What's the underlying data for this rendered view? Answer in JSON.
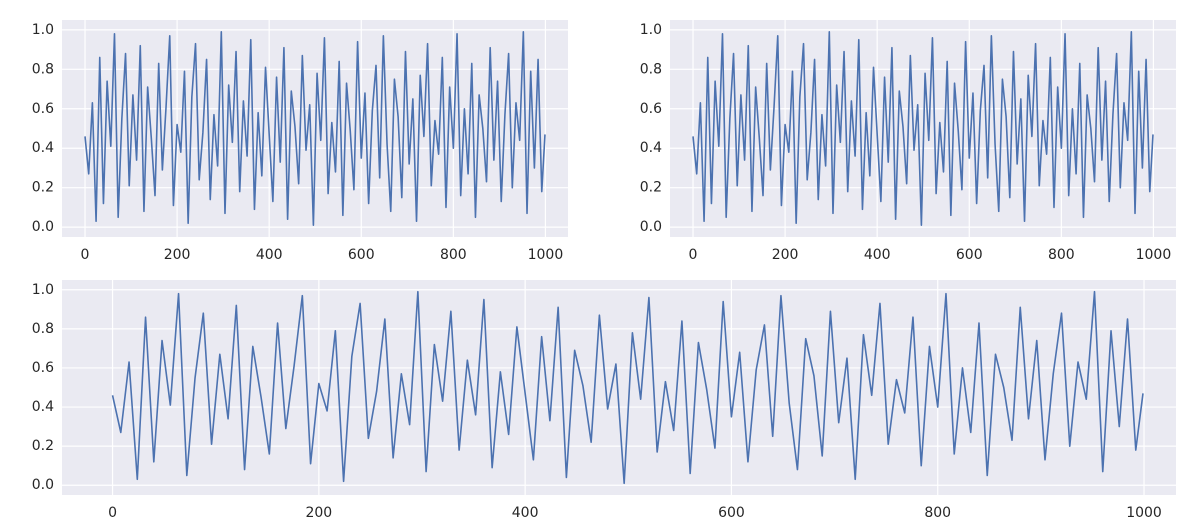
{
  "chart_data": [
    {
      "type": "line",
      "color": "#4c72b0",
      "grid": true,
      "x": [
        0,
        8,
        16,
        24,
        32,
        40,
        48,
        56,
        64,
        72,
        80,
        88,
        96,
        104,
        112,
        120,
        128,
        136,
        144,
        152,
        160,
        168,
        176,
        184,
        192,
        200,
        208,
        216,
        224,
        232,
        240,
        248,
        256,
        264,
        272,
        280,
        288,
        296,
        304,
        312,
        320,
        328,
        336,
        344,
        352,
        360,
        368,
        376,
        384,
        392,
        400,
        408,
        416,
        424,
        432,
        440,
        448,
        456,
        464,
        472,
        480,
        488,
        496,
        504,
        512,
        520,
        528,
        536,
        544,
        552,
        560,
        568,
        576,
        584,
        592,
        600,
        608,
        616,
        624,
        632,
        640,
        648,
        656,
        664,
        672,
        680,
        688,
        696,
        704,
        712,
        720,
        728,
        736,
        744,
        752,
        760,
        768,
        776,
        784,
        792,
        800,
        808,
        816,
        824,
        832,
        840,
        848,
        856,
        864,
        872,
        880,
        888,
        896,
        904,
        912,
        920,
        928,
        936,
        944,
        952,
        960,
        968,
        976,
        984,
        992,
        999
      ],
      "values": [
        0.46,
        0.27,
        0.63,
        0.03,
        0.86,
        0.12,
        0.74,
        0.41,
        0.98,
        0.05,
        0.55,
        0.88,
        0.21,
        0.67,
        0.34,
        0.92,
        0.08,
        0.71,
        0.45,
        0.16,
        0.83,
        0.29,
        0.61,
        0.97,
        0.11,
        0.52,
        0.38,
        0.79,
        0.02,
        0.66,
        0.93,
        0.24,
        0.48,
        0.85,
        0.14,
        0.57,
        0.31,
        0.99,
        0.07,
        0.72,
        0.43,
        0.89,
        0.18,
        0.64,
        0.36,
        0.95,
        0.09,
        0.58,
        0.26,
        0.81,
        0.47,
        0.13,
        0.76,
        0.33,
        0.91,
        0.04,
        0.69,
        0.51,
        0.22,
        0.87,
        0.39,
        0.62,
        0.01,
        0.78,
        0.44,
        0.96,
        0.17,
        0.53,
        0.28,
        0.84,
        0.06,
        0.73,
        0.49,
        0.19,
        0.94,
        0.35,
        0.68,
        0.12,
        0.59,
        0.82,
        0.25,
        0.97,
        0.42,
        0.08,
        0.75,
        0.56,
        0.15,
        0.89,
        0.32,
        0.65,
        0.03,
        0.77,
        0.46,
        0.93,
        0.21,
        0.54,
        0.37,
        0.86,
        0.1,
        0.71,
        0.4,
        0.98,
        0.16,
        0.6,
        0.27,
        0.83,
        0.05,
        0.67,
        0.5,
        0.23,
        0.91,
        0.34,
        0.74,
        0.13,
        0.57,
        0.88,
        0.2,
        0.63,
        0.44,
        0.99,
        0.07,
        0.79,
        0.3,
        0.85,
        0.18,
        0.47
      ],
      "xlim": [
        -50,
        1049
      ],
      "ylim": [
        -0.05,
        1.05
      ],
      "xticks": [
        0,
        200,
        400,
        600,
        800,
        1000
      ],
      "yticks": [
        {
          "value": 0,
          "label": "0.0"
        },
        {
          "value": 0.2,
          "label": "0.2"
        },
        {
          "value": 0.4,
          "label": "0.4"
        },
        {
          "value": 0.6,
          "label": "0.6"
        },
        {
          "value": 0.8,
          "label": "0.8"
        },
        {
          "value": 1,
          "label": "1.0"
        }
      ]
    },
    {
      "type": "line",
      "color": "#4c72b0",
      "grid": true,
      "x": [
        0,
        8,
        16,
        24,
        32,
        40,
        48,
        56,
        64,
        72,
        80,
        88,
        96,
        104,
        112,
        120,
        128,
        136,
        144,
        152,
        160,
        168,
        176,
        184,
        192,
        200,
        208,
        216,
        224,
        232,
        240,
        248,
        256,
        264,
        272,
        280,
        288,
        296,
        304,
        312,
        320,
        328,
        336,
        344,
        352,
        360,
        368,
        376,
        384,
        392,
        400,
        408,
        416,
        424,
        432,
        440,
        448,
        456,
        464,
        472,
        480,
        488,
        496,
        504,
        512,
        520,
        528,
        536,
        544,
        552,
        560,
        568,
        576,
        584,
        592,
        600,
        608,
        616,
        624,
        632,
        640,
        648,
        656,
        664,
        672,
        680,
        688,
        696,
        704,
        712,
        720,
        728,
        736,
        744,
        752,
        760,
        768,
        776,
        784,
        792,
        800,
        808,
        816,
        824,
        832,
        840,
        848,
        856,
        864,
        872,
        880,
        888,
        896,
        904,
        912,
        920,
        928,
        936,
        944,
        952,
        960,
        968,
        976,
        984,
        992,
        999
      ],
      "values": [
        0.46,
        0.27,
        0.63,
        0.03,
        0.86,
        0.12,
        0.74,
        0.41,
        0.98,
        0.05,
        0.55,
        0.88,
        0.21,
        0.67,
        0.34,
        0.92,
        0.08,
        0.71,
        0.45,
        0.16,
        0.83,
        0.29,
        0.61,
        0.97,
        0.11,
        0.52,
        0.38,
        0.79,
        0.02,
        0.66,
        0.93,
        0.24,
        0.48,
        0.85,
        0.14,
        0.57,
        0.31,
        0.99,
        0.07,
        0.72,
        0.43,
        0.89,
        0.18,
        0.64,
        0.36,
        0.95,
        0.09,
        0.58,
        0.26,
        0.81,
        0.47,
        0.13,
        0.76,
        0.33,
        0.91,
        0.04,
        0.69,
        0.51,
        0.22,
        0.87,
        0.39,
        0.62,
        0.01,
        0.78,
        0.44,
        0.96,
        0.17,
        0.53,
        0.28,
        0.84,
        0.06,
        0.73,
        0.49,
        0.19,
        0.94,
        0.35,
        0.68,
        0.12,
        0.59,
        0.82,
        0.25,
        0.97,
        0.42,
        0.08,
        0.75,
        0.56,
        0.15,
        0.89,
        0.32,
        0.65,
        0.03,
        0.77,
        0.46,
        0.93,
        0.21,
        0.54,
        0.37,
        0.86,
        0.1,
        0.71,
        0.4,
        0.98,
        0.16,
        0.6,
        0.27,
        0.83,
        0.05,
        0.67,
        0.5,
        0.23,
        0.91,
        0.34,
        0.74,
        0.13,
        0.57,
        0.88,
        0.2,
        0.63,
        0.44,
        0.99,
        0.07,
        0.79,
        0.3,
        0.85,
        0.18,
        0.47
      ],
      "xlim": [
        -50,
        1049
      ],
      "ylim": [
        -0.05,
        1.05
      ],
      "xticks": [
        0,
        200,
        400,
        600,
        800,
        1000
      ],
      "yticks": [
        {
          "value": 0,
          "label": "0.0"
        },
        {
          "value": 0.2,
          "label": "0.2"
        },
        {
          "value": 0.4,
          "label": "0.4"
        },
        {
          "value": 0.6,
          "label": "0.6"
        },
        {
          "value": 0.8,
          "label": "0.8"
        },
        {
          "value": 1,
          "label": "1.0"
        }
      ]
    },
    {
      "type": "line",
      "color": "#4c72b0",
      "grid": true,
      "x": [
        0,
        8,
        16,
        24,
        32,
        40,
        48,
        56,
        64,
        72,
        80,
        88,
        96,
        104,
        112,
        120,
        128,
        136,
        144,
        152,
        160,
        168,
        176,
        184,
        192,
        200,
        208,
        216,
        224,
        232,
        240,
        248,
        256,
        264,
        272,
        280,
        288,
        296,
        304,
        312,
        320,
        328,
        336,
        344,
        352,
        360,
        368,
        376,
        384,
        392,
        400,
        408,
        416,
        424,
        432,
        440,
        448,
        456,
        464,
        472,
        480,
        488,
        496,
        504,
        512,
        520,
        528,
        536,
        544,
        552,
        560,
        568,
        576,
        584,
        592,
        600,
        608,
        616,
        624,
        632,
        640,
        648,
        656,
        664,
        672,
        680,
        688,
        696,
        704,
        712,
        720,
        728,
        736,
        744,
        752,
        760,
        768,
        776,
        784,
        792,
        800,
        808,
        816,
        824,
        832,
        840,
        848,
        856,
        864,
        872,
        880,
        888,
        896,
        904,
        912,
        920,
        928,
        936,
        944,
        952,
        960,
        968,
        976,
        984,
        992,
        999
      ],
      "values": [
        0.46,
        0.27,
        0.63,
        0.03,
        0.86,
        0.12,
        0.74,
        0.41,
        0.98,
        0.05,
        0.55,
        0.88,
        0.21,
        0.67,
        0.34,
        0.92,
        0.08,
        0.71,
        0.45,
        0.16,
        0.83,
        0.29,
        0.61,
        0.97,
        0.11,
        0.52,
        0.38,
        0.79,
        0.02,
        0.66,
        0.93,
        0.24,
        0.48,
        0.85,
        0.14,
        0.57,
        0.31,
        0.99,
        0.07,
        0.72,
        0.43,
        0.89,
        0.18,
        0.64,
        0.36,
        0.95,
        0.09,
        0.58,
        0.26,
        0.81,
        0.47,
        0.13,
        0.76,
        0.33,
        0.91,
        0.04,
        0.69,
        0.51,
        0.22,
        0.87,
        0.39,
        0.62,
        0.01,
        0.78,
        0.44,
        0.96,
        0.17,
        0.53,
        0.28,
        0.84,
        0.06,
        0.73,
        0.49,
        0.19,
        0.94,
        0.35,
        0.68,
        0.12,
        0.59,
        0.82,
        0.25,
        0.97,
        0.42,
        0.08,
        0.75,
        0.56,
        0.15,
        0.89,
        0.32,
        0.65,
        0.03,
        0.77,
        0.46,
        0.93,
        0.21,
        0.54,
        0.37,
        0.86,
        0.1,
        0.71,
        0.4,
        0.98,
        0.16,
        0.6,
        0.27,
        0.83,
        0.05,
        0.67,
        0.5,
        0.23,
        0.91,
        0.34,
        0.74,
        0.13,
        0.57,
        0.88,
        0.2,
        0.63,
        0.44,
        0.99,
        0.07,
        0.79,
        0.3,
        0.85,
        0.18,
        0.47
      ],
      "xlim": [
        -49,
        1031
      ],
      "ylim": [
        -0.05,
        1.05
      ],
      "xticks": [
        0,
        200,
        400,
        600,
        800,
        1000
      ],
      "yticks": [
        {
          "value": 0,
          "label": "0.0"
        },
        {
          "value": 0.2,
          "label": "0.2"
        },
        {
          "value": 0.4,
          "label": "0.4"
        },
        {
          "value": 0.6,
          "label": "0.6"
        },
        {
          "value": 0.8,
          "label": "0.8"
        },
        {
          "value": 1,
          "label": "1.0"
        }
      ]
    }
  ]
}
